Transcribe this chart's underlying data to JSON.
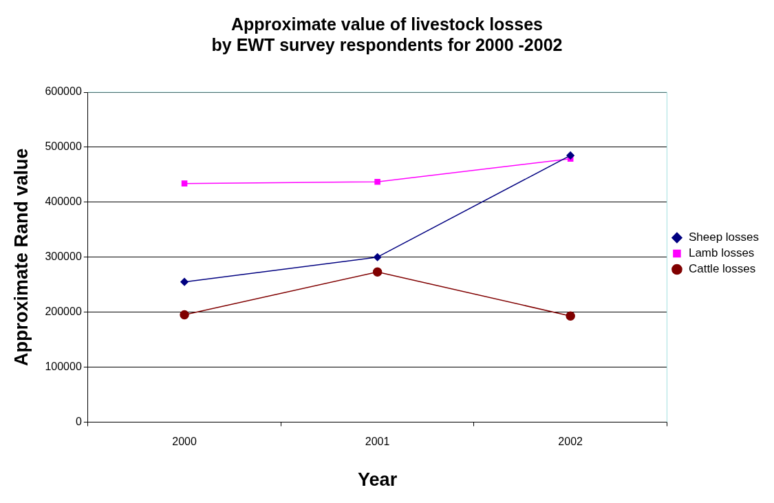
{
  "chart_data": {
    "type": "line",
    "title": [
      "Approximate value of livestock losses",
      "by EWT survey respondents for 2000 -2002"
    ],
    "xlabel": "Year",
    "ylabel": "Approximate Rand value",
    "categories": [
      "2000",
      "2001",
      "2002"
    ],
    "series": [
      {
        "name": "Sheep losses",
        "color": "#000080",
        "marker": "diamond",
        "values": [
          255000,
          300000,
          485000
        ]
      },
      {
        "name": "Lamb losses",
        "color": "#ff00ff",
        "marker": "square",
        "values": [
          434000,
          437000,
          479000
        ]
      },
      {
        "name": "Cattle losses",
        "color": "#800000",
        "marker": "circle",
        "values": [
          195000,
          273000,
          193000
        ]
      }
    ],
    "ylim": [
      0,
      600000
    ],
    "yticks": [
      0,
      100000,
      200000,
      300000,
      400000,
      500000,
      600000
    ],
    "grid": "y",
    "legend": "right",
    "line_style": "solid"
  }
}
